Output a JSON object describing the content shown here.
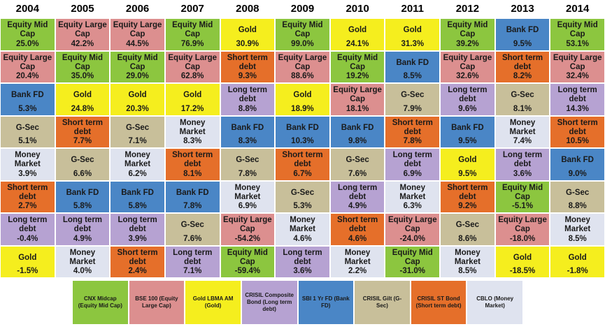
{
  "chart_data": {
    "type": "table",
    "years": [
      "2004",
      "2005",
      "2006",
      "2007",
      "2008",
      "2009",
      "2010",
      "2011",
      "2012",
      "2013",
      "2014"
    ],
    "asset_colors": {
      "Equity Mid Cap": "#8cc63f",
      "Equity Large Cap": "#dc8f8f",
      "Gold": "#f5ee1e",
      "Long term debt": "#b6a2d2",
      "Bank FD": "#4a86c6",
      "G-Sec": "#c8bf9a",
      "Short term debt": "#e56f2a",
      "Money Market": "#dfe3ef"
    },
    "columns": [
      [
        [
          "Equity Mid Cap",
          "25.0%"
        ],
        [
          "Equity Large Cap",
          "20.4%"
        ],
        [
          "Bank FD",
          "5.3%"
        ],
        [
          "G-Sec",
          "5.1%"
        ],
        [
          "Money Market",
          "3.9%"
        ],
        [
          "Short term debt",
          "2.7%"
        ],
        [
          "Long term debt",
          "-0.4%"
        ],
        [
          "Gold",
          "-1.5%"
        ]
      ],
      [
        [
          "Equity Large Cap",
          "42.2%"
        ],
        [
          "Equity Mid Cap",
          "35.0%"
        ],
        [
          "Gold",
          "24.8%"
        ],
        [
          "Short term debt",
          "7.7%"
        ],
        [
          "G-Sec",
          "6.6%"
        ],
        [
          "Bank FD",
          "5.8%"
        ],
        [
          "Long term debt",
          "4.9%"
        ],
        [
          "Money Market",
          "4.0%"
        ]
      ],
      [
        [
          "Equity Large Cap",
          "44.5%"
        ],
        [
          "Equity Mid Cap",
          "29.0%"
        ],
        [
          "Gold",
          "20.3%"
        ],
        [
          "G-Sec",
          "7.1%"
        ],
        [
          "Money Market",
          "6.2%"
        ],
        [
          "Bank FD",
          "5.8%"
        ],
        [
          "Long term debt",
          "3.9%"
        ],
        [
          "Short term debt",
          "2.4%"
        ]
      ],
      [
        [
          "Equity Mid Cap",
          "76.9%"
        ],
        [
          "Equity Large Cap",
          "62.8%"
        ],
        [
          "Gold",
          "17.2%"
        ],
        [
          "Money Market",
          "8.3%"
        ],
        [
          "Short term debt",
          "8.1%"
        ],
        [
          "Bank FD",
          "7.8%"
        ],
        [
          "G-Sec",
          "7.6%"
        ],
        [
          "Long term debt",
          "7.1%"
        ]
      ],
      [
        [
          "Gold",
          "30.9%"
        ],
        [
          "Short term debt",
          "9.3%"
        ],
        [
          "Long term debt",
          "8.8%"
        ],
        [
          "Bank FD",
          "8.3%"
        ],
        [
          "G-Sec",
          "7.8%"
        ],
        [
          "Money Market",
          "6.9%"
        ],
        [
          "Equity Large Cap",
          "-54.2%"
        ],
        [
          "Equity Mid Cap",
          "-59.4%"
        ]
      ],
      [
        [
          "Equity Mid Cap",
          "99.0%"
        ],
        [
          "Equity Large Cap",
          "88.6%"
        ],
        [
          "Gold",
          "18.9%"
        ],
        [
          "Bank FD",
          "10.3%"
        ],
        [
          "Short term debt",
          "6.7%"
        ],
        [
          "G-Sec",
          "5.3%"
        ],
        [
          "Money Market",
          "4.6%"
        ],
        [
          "Long term debt",
          "3.6%"
        ]
      ],
      [
        [
          "Gold",
          "24.1%"
        ],
        [
          "Equity Mid Cap",
          "19.2%"
        ],
        [
          "Equity Large Cap",
          "18.1%"
        ],
        [
          "Bank FD",
          "9.8%"
        ],
        [
          "G-Sec",
          "7.6%"
        ],
        [
          "Long term debt",
          "4.9%"
        ],
        [
          "Short term debt",
          "4.6%"
        ],
        [
          "Money Market",
          "2.2%"
        ]
      ],
      [
        [
          "Gold",
          "31.3%"
        ],
        [
          "Bank FD",
          "8.5%"
        ],
        [
          "G-Sec",
          "7.9%"
        ],
        [
          "Short term debt",
          "7.8%"
        ],
        [
          "Long term debt",
          "6.9%"
        ],
        [
          "Money Market",
          "6.3%"
        ],
        [
          "Equity Large Cap",
          "-24.0%"
        ],
        [
          "Equity Mid Cap",
          "-31.0%"
        ]
      ],
      [
        [
          "Equity Mid Cap",
          "39.2%"
        ],
        [
          "Equity Large Cap",
          "32.6%"
        ],
        [
          "Long term debt",
          "9.6%"
        ],
        [
          "Bank FD",
          "9.5%"
        ],
        [
          "Gold",
          "9.5%"
        ],
        [
          "Short term debt",
          "9.2%"
        ],
        [
          "G-Sec",
          "8.6%"
        ],
        [
          "Money Market",
          "8.5%"
        ]
      ],
      [
        [
          "Bank FD",
          "9.5%"
        ],
        [
          "Short term debt",
          "8.2%"
        ],
        [
          "G-Sec",
          "8.1%"
        ],
        [
          "Money Market",
          "7.4%"
        ],
        [
          "Long term debt",
          "3.6%"
        ],
        [
          "Equity Mid Cap",
          "-5.1%"
        ],
        [
          "Equity Large Cap",
          "-18.0%"
        ],
        [
          "Gold",
          "-18.5%"
        ]
      ],
      [
        [
          "Equity Mid Cap",
          "53.1%"
        ],
        [
          "Equity Large Cap",
          "32.4%"
        ],
        [
          "Long term debt",
          "14.3%"
        ],
        [
          "Short term debt",
          "10.5%"
        ],
        [
          "Bank FD",
          "9.0%"
        ],
        [
          "G-Sec",
          "8.8%"
        ],
        [
          "Money Market",
          "8.5%"
        ],
        [
          "Gold",
          "-1.8%"
        ]
      ]
    ],
    "legend": [
      {
        "label": "CNX Midcap (Equity Mid Cap)",
        "asset": "Equity Mid Cap"
      },
      {
        "label": "BSE 100 (Equity Large Cap)",
        "asset": "Equity Large Cap"
      },
      {
        "label": "Gold LBMA AM (Gold)",
        "asset": "Gold"
      },
      {
        "label": "CRISIL Composite Bond (Long term debt)",
        "asset": "Long term debt"
      },
      {
        "label": "SBI 1 Yr FD (Bank FD)",
        "asset": "Bank FD"
      },
      {
        "label": "CRISIL Gilt (G-Sec)",
        "asset": "G-Sec"
      },
      {
        "label": "CRISIL ST Bond (Short term debt)",
        "asset": "Short term debt"
      },
      {
        "label": "CBLO (Money Market)",
        "asset": "Money Market"
      }
    ]
  }
}
